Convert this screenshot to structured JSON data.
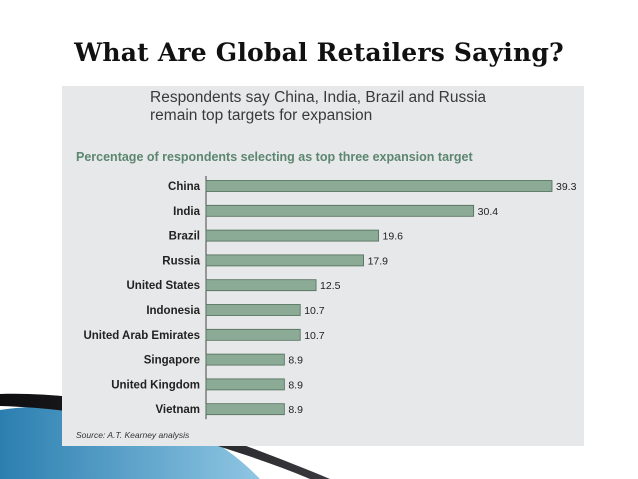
{
  "slide": {
    "title": "What  Are Global Retailers Saying?"
  },
  "figure": {
    "subtitle_line1": "Respondents say China, India, Brazil and Russia",
    "subtitle_line2": "remain top targets for expansion",
    "source": "Source: A.T. Kearney analysis"
  },
  "colors": {
    "bar_fill": "#8cab96",
    "heading": "#5c8670",
    "panel_bg": "#e7e8e9",
    "swoosh_dark": "#0e0e10",
    "swoosh_blue": "#2b7fb0"
  },
  "chart_data": {
    "type": "bar",
    "orientation": "horizontal",
    "title": "Percentage of respondents selecting as top three expansion target",
    "categories": [
      "China",
      "India",
      "Brazil",
      "Russia",
      "United States",
      "Indonesia",
      "United Arab Emirates",
      "Singapore",
      "United Kingdom",
      "Vietnam"
    ],
    "values": [
      39.3,
      30.4,
      19.6,
      17.9,
      12.5,
      10.7,
      10.7,
      8.9,
      8.9,
      8.9
    ],
    "value_labels": [
      "39.3",
      "30.4",
      "19.6",
      "17.9",
      "12.5",
      "10.7",
      "10.7",
      "8.9",
      "8.9",
      "8.9"
    ],
    "xlim": [
      0,
      39.3
    ],
    "grid": false,
    "legend": "none"
  }
}
